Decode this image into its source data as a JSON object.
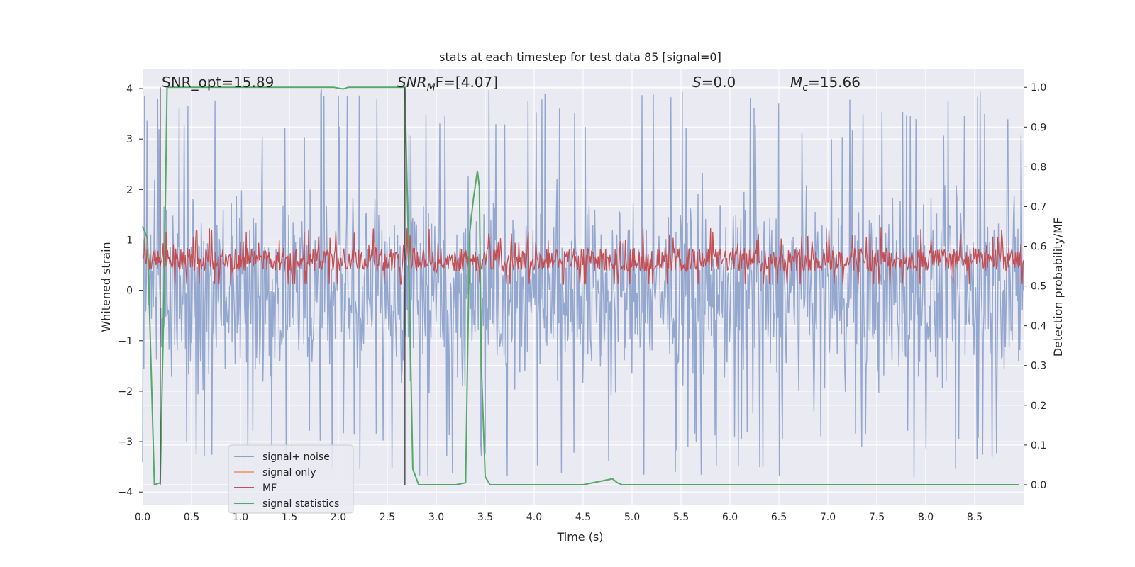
{
  "chart_data": {
    "type": "line",
    "title": "stats at each timestep for test data 85 [signal=0]",
    "xlabel": "Time (s)",
    "ylabel": "Whitened strain",
    "y2label": "Detection probability/MF",
    "xlim": [
      0.0,
      9.0
    ],
    "ylim": [
      -4.25,
      4.38
    ],
    "y2lim": [
      -0.05,
      1.045
    ],
    "xticks": [
      "0.0",
      "0.5",
      "1.0",
      "1.5",
      "2.0",
      "2.5",
      "3.0",
      "3.5",
      "4.0",
      "4.5",
      "5.0",
      "5.5",
      "6.0",
      "6.5",
      "7.0",
      "7.5",
      "8.0",
      "8.5"
    ],
    "yticks": [
      "−4",
      "−3",
      "−2",
      "−1",
      "0",
      "1",
      "2",
      "3",
      "4"
    ],
    "y2ticks": [
      "0.0",
      "0.1",
      "0.2",
      "0.3",
      "0.4",
      "0.5",
      "0.6",
      "0.7",
      "0.8",
      "0.9",
      "1.0"
    ],
    "grid": true,
    "legend_position": "lower-left",
    "annotations": {
      "snr_opt": "SNR_opt=15.89",
      "snr_mf_base": "SNR",
      "snr_mf_sub": "M",
      "snr_mf_rest": "F=[4.07]",
      "s_var": "S",
      "s_rest": "=0.0",
      "mc_var": "M",
      "mc_sub": "c",
      "mc_rest": "=15.66"
    },
    "vlines": [
      0.18,
      2.68
    ],
    "series": [
      {
        "name": "signal+ noise",
        "color": "#8ea3cc",
        "kind": "noise",
        "amplitude_y": [
          -3.7,
          4.0
        ]
      },
      {
        "name": "signal only",
        "color": "#e8a98b",
        "kind": "flat",
        "values": []
      },
      {
        "name": "MF",
        "color": "#c44e52",
        "kind": "band",
        "range_y2": [
          0.5,
          0.62
        ]
      },
      {
        "name": "signal statistics",
        "color": "#55a868",
        "x": [
          0.0,
          0.05,
          0.12,
          0.18,
          0.22,
          0.25,
          0.3,
          1.0,
          1.5,
          1.95,
          2.0,
          2.05,
          2.1,
          2.6,
          2.68,
          2.72,
          2.76,
          2.82,
          3.0,
          3.2,
          3.3,
          3.34,
          3.38,
          3.42,
          3.44,
          3.46,
          3.5,
          3.55,
          3.6,
          3.7,
          4.5,
          4.7,
          4.8,
          4.85,
          4.9,
          5.5,
          8.95
        ],
        "values": [
          0.65,
          0.62,
          0.0,
          0.005,
          0.5,
          1.0,
          1.0,
          1.0,
          1.0,
          1.0,
          0.998,
          0.996,
          1.0,
          1.0,
          1.0,
          0.55,
          0.04,
          0.0,
          0.0,
          0.0,
          0.005,
          0.63,
          0.72,
          0.79,
          0.75,
          0.3,
          0.02,
          0.0,
          0.0,
          0.0,
          0.0,
          0.01,
          0.015,
          0.005,
          0.0,
          0.0,
          0.0
        ]
      }
    ]
  }
}
